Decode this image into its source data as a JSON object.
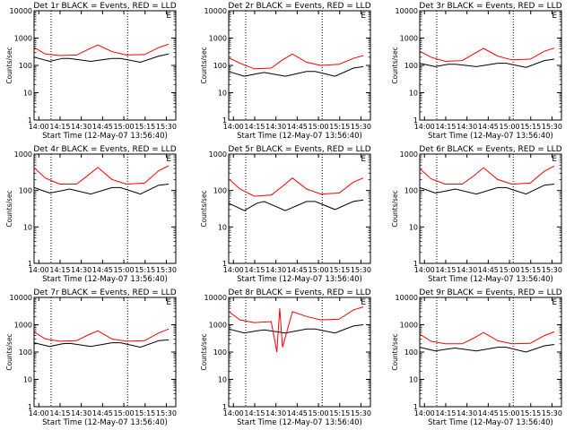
{
  "chart_data": [
    {
      "type": "line",
      "title": "Det 1r BLACK = Events, RED = LLD",
      "xlabel": "Start Time (12-May-07 13:56:40)",
      "ylabel": "Counts/sec",
      "ylim": [
        1,
        10000
      ],
      "yscale": "log",
      "x_ticks": [
        "14:00",
        "14:15",
        "14:30",
        "14:45",
        "15:00",
        "15:15",
        "15:30"
      ],
      "y_ticks": [
        "1",
        "10",
        "100",
        "1000",
        "10000"
      ],
      "marker": "E",
      "series": [
        {
          "name": "Events",
          "color": "#000000",
          "x_min": [
            0,
            11,
            20,
            25,
            40,
            55,
            61,
            75,
            88,
            95
          ],
          "y": [
            200,
            140,
            180,
            180,
            140,
            180,
            180,
            130,
            220,
            260
          ]
        },
        {
          "name": "LLD",
          "color": "#ff0000",
          "x_min": [
            0,
            8,
            18,
            30,
            38,
            45,
            55,
            65,
            78,
            88,
            95
          ],
          "y": [
            450,
            260,
            230,
            240,
            380,
            560,
            320,
            240,
            250,
            450,
            600
          ]
        }
      ],
      "vlines_min": [
        12,
        66
      ]
    },
    {
      "type": "line",
      "title": "Det 2r BLACK = Events, RED = LLD",
      "xlabel": "Start Time (12-May-07 13:56:40)",
      "ylabel": "Counts/sec",
      "ylim": [
        1,
        10000
      ],
      "yscale": "log",
      "x_ticks": [
        "14:00",
        "14:15",
        "14:30",
        "14:45",
        "15:00",
        "15:15",
        "15:30"
      ],
      "y_ticks": [
        "1",
        "10",
        "100",
        "1000",
        "10000"
      ],
      "marker": "E",
      "series": [
        {
          "name": "Events",
          "color": "#000000",
          "x_min": [
            0,
            11,
            20,
            25,
            40,
            55,
            61,
            75,
            88,
            95
          ],
          "y": [
            60,
            40,
            50,
            55,
            40,
            60,
            60,
            40,
            80,
            90
          ]
        },
        {
          "name": "LLD",
          "color": "#ff0000",
          "x_min": [
            0,
            8,
            18,
            30,
            38,
            45,
            55,
            65,
            78,
            88,
            95
          ],
          "y": [
            190,
            120,
            75,
            80,
            160,
            260,
            130,
            100,
            110,
            180,
            230
          ]
        }
      ],
      "vlines_min": [
        12,
        66
      ]
    },
    {
      "type": "line",
      "title": "Det 3r BLACK = Events, RED = LLD",
      "xlabel": "Start Time (12-May-07 13:56:40)",
      "ylabel": "Counts/sec",
      "ylim": [
        1,
        10000
      ],
      "yscale": "log",
      "x_ticks": [
        "14:00",
        "14:15",
        "14:30",
        "14:45",
        "15:00",
        "15:15",
        "15:30"
      ],
      "y_ticks": [
        "1",
        "10",
        "100",
        "1000",
        "10000"
      ],
      "marker": "E",
      "series": [
        {
          "name": "Events",
          "color": "#000000",
          "x_min": [
            0,
            11,
            20,
            25,
            40,
            55,
            61,
            75,
            88,
            95
          ],
          "y": [
            120,
            90,
            110,
            110,
            90,
            120,
            120,
            85,
            150,
            170
          ]
        },
        {
          "name": "LLD",
          "color": "#ff0000",
          "x_min": [
            0,
            8,
            18,
            30,
            38,
            45,
            55,
            65,
            78,
            88,
            95
          ],
          "y": [
            330,
            200,
            140,
            150,
            260,
            420,
            220,
            160,
            170,
            330,
            430
          ]
        }
      ],
      "vlines_min": [
        12,
        66
      ]
    },
    {
      "type": "line",
      "title": "Det 4r BLACK = Events, RED = LLD",
      "xlabel": "Start Time (12-May-07 13:56:40)",
      "ylabel": "Counts/sec",
      "ylim": [
        1,
        1000
      ],
      "yscale": "log",
      "x_ticks": [
        "14:00",
        "14:15",
        "14:30",
        "14:45",
        "15:00",
        "15:15",
        "15:30"
      ],
      "y_ticks": [
        "1",
        "10",
        "100",
        "1000"
      ],
      "marker": "E",
      "series": [
        {
          "name": "Events",
          "color": "#000000",
          "x_min": [
            0,
            11,
            20,
            25,
            40,
            55,
            61,
            75,
            88,
            95
          ],
          "y": [
            120,
            85,
            100,
            110,
            80,
            120,
            120,
            80,
            140,
            150
          ]
        },
        {
          "name": "LLD",
          "color": "#ff0000",
          "x_min": [
            0,
            8,
            18,
            30,
            38,
            45,
            55,
            65,
            78,
            88,
            95
          ],
          "y": [
            420,
            220,
            150,
            150,
            260,
            430,
            200,
            150,
            160,
            350,
            480
          ]
        }
      ],
      "vlines_min": [
        12,
        66
      ]
    },
    {
      "type": "line",
      "title": "Det 5r BLACK = Events, RED = LLD",
      "xlabel": "Start Time (12-May-07 13:56:40)",
      "ylabel": "Counts/sec",
      "ylim": [
        1,
        1000
      ],
      "yscale": "log",
      "x_ticks": [
        "14:00",
        "14:15",
        "14:30",
        "14:45",
        "15:00",
        "15:15",
        "15:30"
      ],
      "y_ticks": [
        "1",
        "10",
        "100",
        "1000"
      ],
      "marker": "E",
      "series": [
        {
          "name": "Events",
          "color": "#000000",
          "x_min": [
            0,
            11,
            20,
            25,
            40,
            55,
            61,
            75,
            88,
            95
          ],
          "y": [
            45,
            28,
            45,
            50,
            28,
            50,
            50,
            30,
            50,
            55
          ]
        },
        {
          "name": "LLD",
          "color": "#ff0000",
          "x_min": [
            0,
            8,
            18,
            30,
            38,
            45,
            55,
            65,
            78,
            88,
            95
          ],
          "y": [
            210,
            110,
            70,
            75,
            130,
            220,
            110,
            80,
            85,
            170,
            220
          ]
        }
      ],
      "vlines_min": [
        12,
        66
      ]
    },
    {
      "type": "line",
      "title": "Det 6r BLACK = Events, RED = LLD",
      "xlabel": "Start Time (12-May-07 13:56:40)",
      "ylabel": "Counts/sec",
      "ylim": [
        1,
        1000
      ],
      "yscale": "log",
      "x_ticks": [
        "14:00",
        "14:15",
        "14:30",
        "14:45",
        "15:00",
        "15:15",
        "15:30"
      ],
      "y_ticks": [
        "1",
        "10",
        "100",
        "1000"
      ],
      "marker": "E",
      "series": [
        {
          "name": "Events",
          "color": "#000000",
          "x_min": [
            0,
            11,
            20,
            25,
            40,
            55,
            61,
            75,
            88,
            95
          ],
          "y": [
            120,
            85,
            100,
            110,
            80,
            120,
            120,
            80,
            140,
            150
          ]
        },
        {
          "name": "LLD",
          "color": "#ff0000",
          "x_min": [
            0,
            8,
            18,
            30,
            38,
            45,
            55,
            65,
            78,
            88,
            95
          ],
          "y": [
            400,
            210,
            150,
            150,
            250,
            420,
            200,
            150,
            160,
            340,
            470
          ]
        }
      ],
      "vlines_min": [
        12,
        66
      ]
    },
    {
      "type": "line",
      "title": "Det 7r BLACK = Events, RED = LLD",
      "xlabel": "Start Time (12-May-07 13:56:40)",
      "ylabel": "Counts/sec",
      "ylim": [
        1,
        10000
      ],
      "yscale": "log",
      "x_ticks": [
        "14:00",
        "14:15",
        "14:30",
        "14:45",
        "15:00",
        "15:15",
        "15:30"
      ],
      "y_ticks": [
        "1",
        "10",
        "100",
        "1000",
        "10000"
      ],
      "marker": "E",
      "series": [
        {
          "name": "Events",
          "color": "#000000",
          "x_min": [
            0,
            11,
            20,
            25,
            40,
            55,
            61,
            75,
            88,
            95
          ],
          "y": [
            220,
            160,
            200,
            210,
            160,
            220,
            220,
            150,
            260,
            280
          ]
        },
        {
          "name": "LLD",
          "color": "#ff0000",
          "x_min": [
            0,
            8,
            18,
            30,
            38,
            45,
            55,
            65,
            78,
            88,
            95
          ],
          "y": [
            550,
            300,
            250,
            260,
            420,
            600,
            300,
            250,
            260,
            500,
            700
          ]
        }
      ],
      "vlines_min": [
        12,
        66
      ]
    },
    {
      "type": "line",
      "title": "Det 8r BLACK = Events, RED = LLD",
      "xlabel": "Start Time (12-May-07 13:56:40)",
      "ylabel": "Counts/sec",
      "ylim": [
        1,
        10000
      ],
      "yscale": "log",
      "x_ticks": [
        "14:00",
        "14:15",
        "14:30",
        "14:45",
        "15:00",
        "15:15",
        "15:30"
      ],
      "y_ticks": [
        "1",
        "10",
        "100",
        "1000",
        "10000"
      ],
      "marker": "E",
      "series": [
        {
          "name": "Events",
          "color": "#000000",
          "x_min": [
            0,
            11,
            20,
            25,
            40,
            55,
            61,
            75,
            88,
            95
          ],
          "y": [
            700,
            500,
            600,
            650,
            500,
            700,
            700,
            500,
            900,
            1000
          ]
        },
        {
          "name": "LLD",
          "color": "#ff0000",
          "x_min": [
            0,
            8,
            18,
            30,
            34,
            36,
            38,
            45,
            55,
            65,
            78,
            88,
            95
          ],
          "y": [
            3000,
            1500,
            1200,
            1300,
            100,
            4000,
            150,
            3000,
            2000,
            1500,
            1600,
            3500,
            4500
          ]
        }
      ],
      "vlines_min": [
        12,
        66
      ]
    },
    {
      "type": "line",
      "title": "Det 9r BLACK = Events, RED = LLD",
      "xlabel": "Start Time (12-May-07 13:56:40)",
      "ylabel": "Counts/sec",
      "ylim": [
        1,
        10000
      ],
      "yscale": "log",
      "x_ticks": [
        "14:00",
        "14:15",
        "14:30",
        "14:45",
        "15:00",
        "15:15",
        "15:30"
      ],
      "y_ticks": [
        "1",
        "10",
        "100",
        "1000",
        "10000"
      ],
      "marker": "E",
      "series": [
        {
          "name": "Events",
          "color": "#000000",
          "x_min": [
            0,
            11,
            20,
            25,
            40,
            55,
            61,
            75,
            88,
            95
          ],
          "y": [
            150,
            110,
            130,
            140,
            110,
            150,
            150,
            100,
            170,
            190
          ]
        },
        {
          "name": "LLD",
          "color": "#ff0000",
          "x_min": [
            0,
            8,
            18,
            30,
            38,
            45,
            55,
            65,
            78,
            88,
            95
          ],
          "y": [
            450,
            250,
            200,
            200,
            320,
            520,
            260,
            200,
            210,
            400,
            550
          ]
        }
      ],
      "vlines_min": [
        12,
        66
      ]
    }
  ]
}
